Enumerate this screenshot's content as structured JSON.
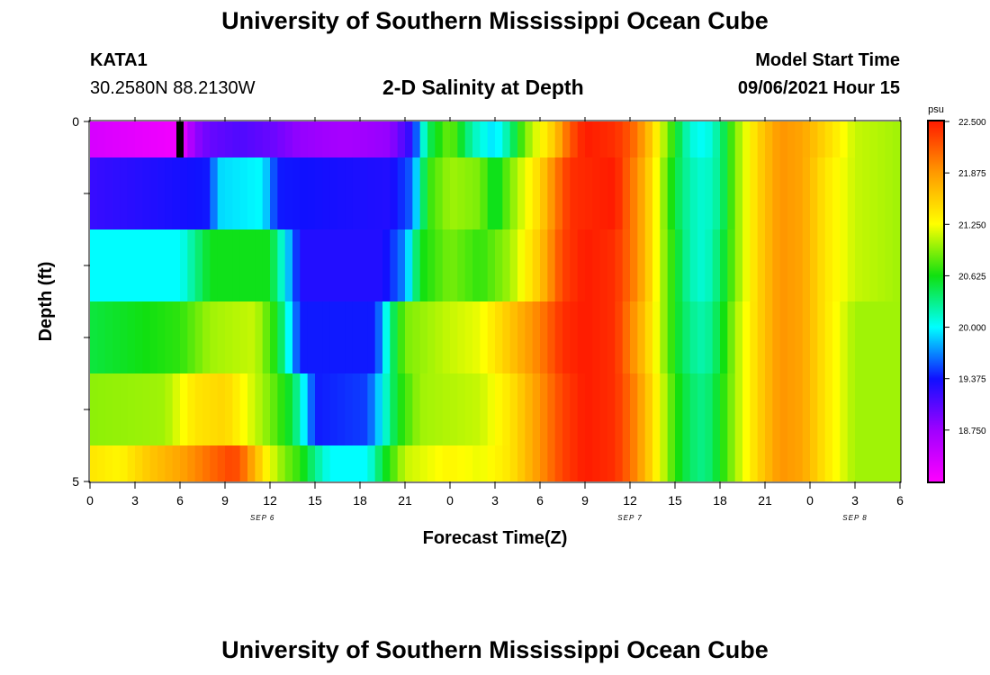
{
  "header": {
    "title": "University of Southern Mississippi Ocean Cube",
    "footer_title": "University of Southern Mississippi Ocean Cube",
    "station": "KATA1",
    "coordinates": "30.2580N  88.2130W",
    "subtitle": "2-D Salinity at Depth",
    "model_start_label": "Model Start Time",
    "model_start_value": "09/06/2021 Hour 15"
  },
  "chart_data": {
    "type": "heatmap",
    "title": "2-D Salinity at Depth",
    "xlabel": "Forecast Time(Z)",
    "ylabel": "Depth (ft)",
    "x_hours": [
      0,
      54
    ],
    "x_tick_labels": [
      "0",
      "3",
      "6",
      "9",
      "12",
      "15",
      "18",
      "21",
      "0",
      "3",
      "6",
      "9",
      "12",
      "15",
      "18",
      "21",
      "0",
      "3",
      "6"
    ],
    "date_labels": [
      {
        "text": "SEP 6",
        "hour": 11.5
      },
      {
        "text": "SEP 7",
        "hour": 36
      },
      {
        "text": "SEP 8",
        "hour": 51
      }
    ],
    "y_range": [
      0,
      5
    ],
    "y_tick_labels": [
      "0",
      "5"
    ],
    "colorbar": {
      "unit": "psu",
      "min": 18.125,
      "max": 22.5,
      "tick_labels": [
        "22.500",
        "21.875",
        "21.250",
        "20.625",
        "20.000",
        "19.375",
        "18.750"
      ]
    },
    "marker": {
      "hour": 6,
      "depth_from": 0,
      "depth_to": 0.5
    },
    "depth_layers": [
      {
        "from": 0,
        "to": 0.5,
        "knots": [
          [
            0,
            18.4
          ],
          [
            6,
            18.2
          ],
          [
            7,
            18.8
          ],
          [
            8,
            19.0
          ],
          [
            10,
            19.1
          ],
          [
            12,
            19.0
          ],
          [
            14,
            18.8
          ],
          [
            17,
            18.7
          ],
          [
            20,
            18.8
          ],
          [
            21.5,
            19.3
          ],
          [
            22.5,
            20.4
          ],
          [
            24,
            20.9
          ],
          [
            25.5,
            20.2
          ],
          [
            27,
            19.9
          ],
          [
            28,
            20.3
          ],
          [
            29,
            20.9
          ],
          [
            31,
            21.6
          ],
          [
            32,
            22.2
          ],
          [
            33,
            22.5
          ],
          [
            35,
            22.4
          ],
          [
            36,
            22.2
          ],
          [
            37,
            21.8
          ],
          [
            38,
            21.2
          ],
          [
            39,
            20.6
          ],
          [
            40,
            20.1
          ],
          [
            41,
            20.0
          ],
          [
            42,
            20.3
          ],
          [
            43,
            20.9
          ],
          [
            44.5,
            21.5
          ],
          [
            46,
            21.9
          ],
          [
            47.5,
            21.8
          ],
          [
            49,
            21.5
          ],
          [
            51,
            21.1
          ],
          [
            54,
            21.0
          ]
        ]
      },
      {
        "from": 0.5,
        "to": 1.5,
        "knots": [
          [
            0,
            19.2
          ],
          [
            8,
            19.4
          ],
          [
            8.5,
            19.9
          ],
          [
            11.5,
            20.0
          ],
          [
            12.5,
            19.4
          ],
          [
            20,
            19.3
          ],
          [
            21.5,
            19.6
          ],
          [
            22.5,
            20.7
          ],
          [
            24,
            21.0
          ],
          [
            26,
            20.9
          ],
          [
            27,
            20.5
          ],
          [
            28,
            20.9
          ],
          [
            30,
            21.5
          ],
          [
            31,
            22.0
          ],
          [
            32,
            22.4
          ],
          [
            35,
            22.5
          ],
          [
            36,
            22.1
          ],
          [
            37,
            21.7
          ],
          [
            38,
            21.1
          ],
          [
            39,
            20.5
          ],
          [
            40,
            20.2
          ],
          [
            41,
            20.1
          ],
          [
            42,
            20.3
          ],
          [
            43,
            20.9
          ],
          [
            44.5,
            21.5
          ],
          [
            46,
            21.9
          ],
          [
            47.5,
            21.8
          ],
          [
            49,
            21.4
          ],
          [
            51,
            21.1
          ],
          [
            54,
            21.0
          ]
        ]
      },
      {
        "from": 1.5,
        "to": 2.5,
        "knots": [
          [
            0,
            20.0
          ],
          [
            6,
            20.0
          ],
          [
            7,
            20.3
          ],
          [
            8,
            20.6
          ],
          [
            12,
            20.6
          ],
          [
            13,
            20.0
          ],
          [
            14,
            19.3
          ],
          [
            19.5,
            19.3
          ],
          [
            21,
            19.7
          ],
          [
            22,
            20.6
          ],
          [
            24,
            20.9
          ],
          [
            26,
            20.7
          ],
          [
            28,
            21.0
          ],
          [
            30,
            21.6
          ],
          [
            31.5,
            22.3
          ],
          [
            33,
            22.5
          ],
          [
            35,
            22.4
          ],
          [
            36,
            22.1
          ],
          [
            37,
            21.7
          ],
          [
            38,
            21.1
          ],
          [
            39,
            20.6
          ],
          [
            40,
            20.2
          ],
          [
            41,
            20.1
          ],
          [
            42,
            20.4
          ],
          [
            43,
            20.9
          ],
          [
            44.5,
            21.5
          ],
          [
            46,
            21.9
          ],
          [
            47.5,
            21.8
          ],
          [
            49,
            21.4
          ],
          [
            51,
            21.1
          ],
          [
            54,
            21.0
          ]
        ]
      },
      {
        "from": 2.5,
        "to": 3.5,
        "knots": [
          [
            0,
            20.5
          ],
          [
            6,
            20.7
          ],
          [
            8,
            21.0
          ],
          [
            11,
            21.1
          ],
          [
            12.5,
            20.6
          ],
          [
            14,
            19.4
          ],
          [
            19,
            19.4
          ],
          [
            19.5,
            19.8
          ],
          [
            20,
            20.3
          ],
          [
            21,
            20.9
          ],
          [
            24,
            21.1
          ],
          [
            26,
            21.2
          ],
          [
            28,
            21.6
          ],
          [
            30,
            22.0
          ],
          [
            31.5,
            22.4
          ],
          [
            33,
            22.5
          ],
          [
            35,
            22.4
          ],
          [
            36,
            22.0
          ],
          [
            37,
            21.6
          ],
          [
            38,
            21.1
          ],
          [
            39,
            20.6
          ],
          [
            40,
            20.3
          ],
          [
            41,
            20.2
          ],
          [
            42,
            20.5
          ],
          [
            43,
            21.0
          ],
          [
            44.5,
            21.5
          ],
          [
            46,
            21.9
          ],
          [
            47.5,
            21.8
          ],
          [
            49,
            21.4
          ],
          [
            51,
            21.0
          ],
          [
            54,
            21.0
          ]
        ]
      },
      {
        "from": 3.5,
        "to": 4.5,
        "knots": [
          [
            0,
            20.95
          ],
          [
            5,
            21.0
          ],
          [
            7,
            21.4
          ],
          [
            9,
            21.5
          ],
          [
            10.5,
            21.2
          ],
          [
            12,
            20.9
          ],
          [
            13.5,
            20.5
          ],
          [
            14.5,
            19.8
          ],
          [
            15,
            19.4
          ],
          [
            18.5,
            19.5
          ],
          [
            19.5,
            20.0
          ],
          [
            20.5,
            20.6
          ],
          [
            22,
            21.0
          ],
          [
            26,
            21.1
          ],
          [
            28,
            21.4
          ],
          [
            30,
            21.9
          ],
          [
            31.5,
            22.3
          ],
          [
            33,
            22.5
          ],
          [
            35,
            22.4
          ],
          [
            36,
            22.1
          ],
          [
            37,
            21.7
          ],
          [
            38,
            21.2
          ],
          [
            39,
            20.7
          ],
          [
            40,
            20.4
          ],
          [
            41,
            20.3
          ],
          [
            42,
            20.6
          ],
          [
            43,
            21.0
          ],
          [
            44.5,
            21.5
          ],
          [
            46,
            21.9
          ],
          [
            47.5,
            21.8
          ],
          [
            49,
            21.4
          ],
          [
            51,
            21.0
          ],
          [
            54,
            21.0
          ]
        ]
      },
      {
        "from": 4.5,
        "to": 5,
        "knots": [
          [
            0,
            21.4
          ],
          [
            2,
            21.3
          ],
          [
            4,
            21.6
          ],
          [
            6,
            21.8
          ],
          [
            8,
            22.1
          ],
          [
            9.5,
            22.3
          ],
          [
            10,
            22.2
          ],
          [
            11,
            21.7
          ],
          [
            12,
            21.2
          ],
          [
            13,
            20.9
          ],
          [
            14,
            20.7
          ],
          [
            15,
            20.3
          ],
          [
            16,
            20.0
          ],
          [
            18.5,
            20.0
          ],
          [
            19.5,
            20.5
          ],
          [
            21,
            21.1
          ],
          [
            24,
            21.3
          ],
          [
            26,
            21.2
          ],
          [
            28,
            21.4
          ],
          [
            30,
            21.9
          ],
          [
            31.5,
            22.3
          ],
          [
            33,
            22.5
          ],
          [
            35,
            22.4
          ],
          [
            36,
            22.1
          ],
          [
            37,
            21.7
          ],
          [
            38,
            21.2
          ],
          [
            39,
            20.7
          ],
          [
            40,
            20.4
          ],
          [
            41,
            20.3
          ],
          [
            42,
            20.6
          ],
          [
            43,
            21.0
          ],
          [
            44.5,
            21.5
          ],
          [
            46,
            21.9
          ],
          [
            47.5,
            21.8
          ],
          [
            49,
            21.4
          ],
          [
            51,
            21.0
          ],
          [
            54,
            21.0
          ]
        ]
      }
    ]
  }
}
